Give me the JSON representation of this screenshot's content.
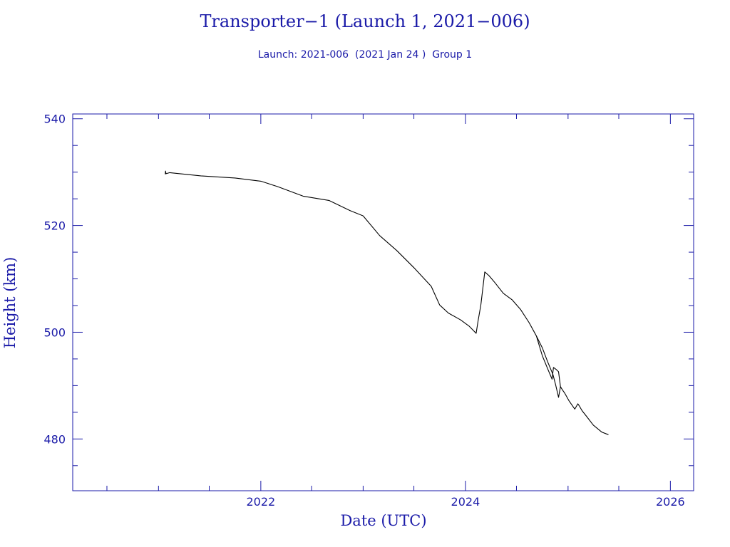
{
  "chart_data": {
    "type": "line",
    "title": "Transporter−1 (Launch 1, 2021−006)",
    "subtitle": "Launch: 2021-006  (2021 Jan 24 )  Group 1",
    "xlabel": "Date (UTC)",
    "ylabel": "Height (km)",
    "xlim": [
      "2020-03-01",
      "2026-03-25"
    ],
    "ylim": [
      470.3,
      540.9
    ],
    "x_ticks": [
      {
        "value": "2022-01-01",
        "label": "2022"
      },
      {
        "value": "2024-01-01",
        "label": "2024"
      },
      {
        "value": "2026-01-01",
        "label": "2026"
      }
    ],
    "x_minor_ticks": [
      "2020-07-01",
      "2021-01-01",
      "2021-07-01",
      "2022-07-01",
      "2023-01-01",
      "2023-07-01",
      "2024-07-01",
      "2025-01-01",
      "2025-07-01"
    ],
    "y_ticks": [
      480,
      500,
      520,
      540
    ],
    "y_minor_ticks": [
      475,
      485,
      490,
      495,
      505,
      510,
      515,
      525,
      530,
      535
    ],
    "grid": false,
    "series": [
      {
        "color": "#000000",
        "x": [
          "2021-01-25",
          "2021-01-26",
          "2021-01-28",
          "2021-02-10",
          "2021-06-01",
          "2021-10-01",
          "2022-01-01",
          "2022-03-01",
          "2022-06-01",
          "2022-09-01",
          "2022-11-15",
          "2023-01-01",
          "2023-03-01",
          "2023-05-01",
          "2023-07-01",
          "2023-09-01",
          "2023-10-01",
          "2023-11-01",
          "2023-12-15",
          "2024-01-15",
          "2024-02-08",
          "2024-02-15",
          "2024-02-25",
          "2024-03-10",
          "2024-03-25",
          "2024-04-15",
          "2024-05-15",
          "2024-06-15",
          "2024-07-15",
          "2024-08-15",
          "2024-09-10",
          "2024-10-01",
          "2024-10-20",
          "2024-11-08",
          "2024-11-18",
          "2024-11-28",
          "2024-12-05",
          "2024-12-12",
          "2024-12-20",
          "2025-01-05",
          "2025-01-25",
          "2025-02-05",
          "2025-02-10",
          "2025-02-20",
          "2025-03-10",
          "2025-04-01",
          "2025-05-01",
          "2025-05-25"
        ],
        "y": [
          529.6,
          530.2,
          529.7,
          529.9,
          529.3,
          528.9,
          528.3,
          527.3,
          525.5,
          524.7,
          522.8,
          521.8,
          518.1,
          515.3,
          512.1,
          508.6,
          505.1,
          503.6,
          502.3,
          501.1,
          499.8,
          502.1,
          505.1,
          511.3,
          510.6,
          509.3,
          507.3,
          506.1,
          504.3,
          501.8,
          499.3,
          497.1,
          494.5,
          492.1,
          490.1,
          487.8,
          489.8,
          489.2,
          488.6,
          487.1,
          485.6,
          486.6,
          486.2,
          485.3,
          484.1,
          482.6,
          481.3,
          480.8
        ]
      },
      {
        "color": "#000000",
        "x": [
          "2024-09-10",
          "2024-10-01",
          "2024-10-20",
          "2024-11-05",
          "2024-11-10",
          "2024-11-18",
          "2024-11-28",
          "2024-12-05"
        ],
        "y": [
          499.3,
          495.6,
          493.2,
          491.2,
          493.4,
          493.1,
          492.6,
          489.8
        ]
      }
    ]
  }
}
